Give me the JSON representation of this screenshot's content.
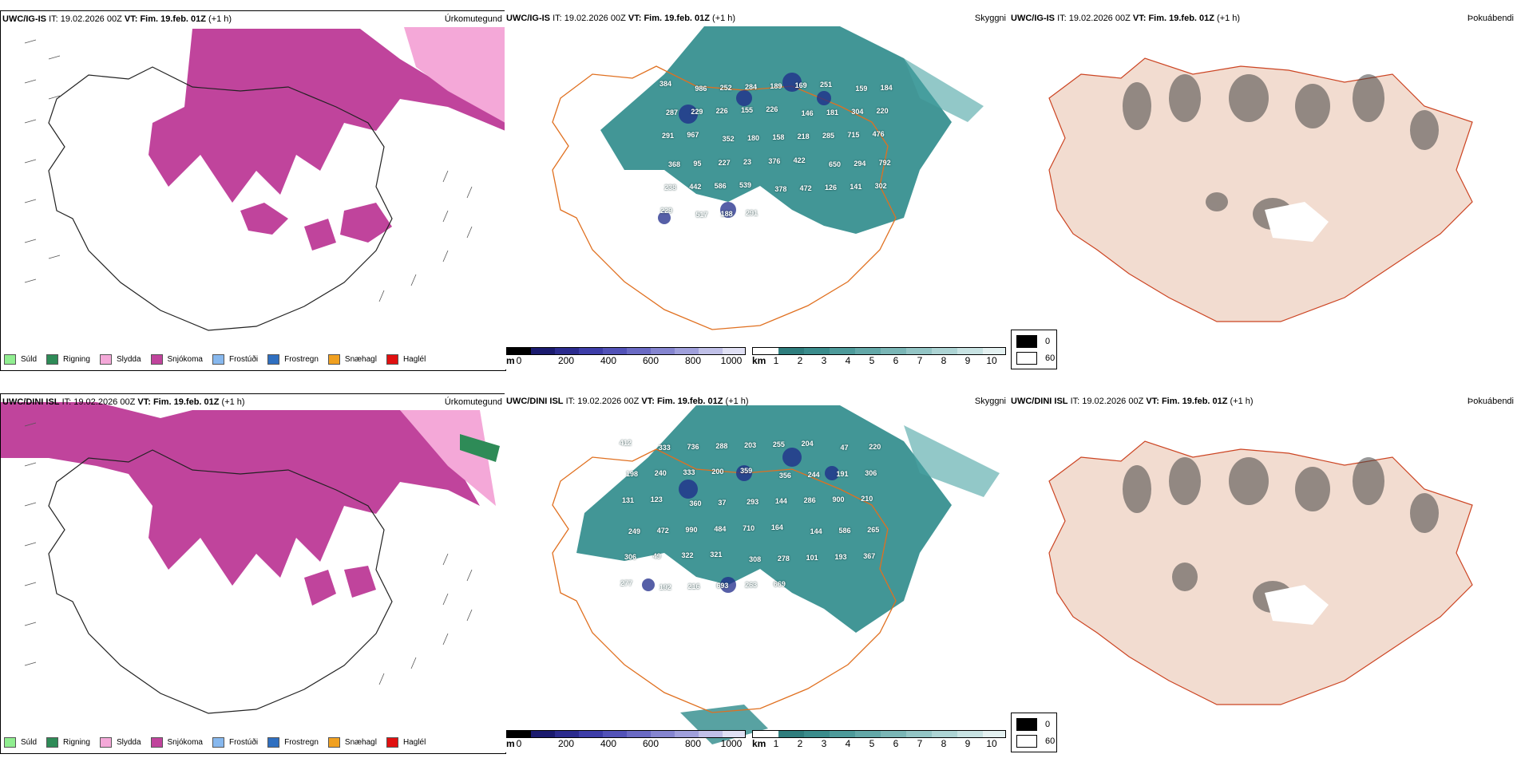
{
  "panels": {
    "top": {
      "precip": {
        "model": "UWC/IG-IS",
        "it_label": "IT:",
        "it_value": "19.02.2026 00Z",
        "vt_label": "VT:",
        "vt_value": "Fim. 19.feb. 01Z",
        "lead": "(+1 h)",
        "title": "Úrkomutegund"
      },
      "visibility": {
        "model": "UWC/IG-IS",
        "it_label": "IT:",
        "it_value": "19.02.2026 00Z",
        "vt_label": "VT:",
        "vt_value": "Fim. 19.feb. 01Z",
        "lead": "(+1 h)",
        "title": "Skyggni"
      },
      "fog": {
        "model": "UWC/IG-IS",
        "it_label": "IT:",
        "it_value": "19.02.2026 00Z",
        "vt_label": "VT:",
        "vt_value": "Fim. 19.feb. 01Z",
        "lead": "(+1 h)",
        "title": "Þokuábendi"
      }
    },
    "bottom": {
      "precip": {
        "model": "UWC/DINI ISL",
        "it_label": "IT:",
        "it_value": "19.02.2026 00Z",
        "vt_label": "VT:",
        "vt_value": "Fim. 19.feb. 01Z",
        "lead": "(+1 h)",
        "title": "Úrkomutegund"
      },
      "visibility": {
        "model": "UWC/DINI ISL",
        "it_label": "IT:",
        "it_value": "19.02.2026 00Z",
        "vt_label": "VT:",
        "vt_value": "Fim. 19.feb. 01Z",
        "lead": "(+1 h)",
        "title": "Skyggni"
      },
      "fog": {
        "model": "UWC/DINI ISL",
        "it_label": "IT:",
        "it_value": "19.02.2026 00Z",
        "vt_label": "VT:",
        "vt_value": "Fim. 19.feb. 01Z",
        "lead": "(+1 h)",
        "title": "Þokuábendi"
      }
    }
  },
  "precip_legend": [
    {
      "label": "Súld",
      "color": "#90ee90"
    },
    {
      "label": "Rigning",
      "color": "#2e8b57"
    },
    {
      "label": "Slydda",
      "color": "#f4a8d8"
    },
    {
      "label": "Snjókoma",
      "color": "#c0449c"
    },
    {
      "label": "Frostúði",
      "color": "#87b8ee"
    },
    {
      "label": "Frostregn",
      "color": "#2f6fc0"
    },
    {
      "label": "Snæhagl",
      "color": "#f0a020"
    },
    {
      "label": "Haglél",
      "color": "#e01010"
    }
  ],
  "height_colorbar": {
    "unit": "m",
    "ticks": [
      "0",
      "200",
      "400",
      "600",
      "800",
      "1000"
    ]
  },
  "visibility_colorbar": {
    "unit": "km",
    "ticks": [
      "1",
      "2",
      "3",
      "4",
      "5",
      "6",
      "7",
      "8",
      "9",
      "10"
    ]
  },
  "fog_legend": {
    "high": "0",
    "low": "60"
  },
  "station_values": {
    "top": [
      "384",
      "986",
      "252",
      "284",
      "189",
      "169",
      "251",
      "159",
      "184",
      "287",
      "229",
      "226",
      "155",
      "226",
      "146",
      "181",
      "304",
      "220",
      "291",
      "967",
      "352",
      "180",
      "158",
      "218",
      "285",
      "715",
      "476",
      "368",
      "95",
      "227",
      "23",
      "376",
      "422",
      "650",
      "294",
      "792",
      "238",
      "442",
      "586",
      "539",
      "378",
      "472",
      "126",
      "141",
      "302",
      "229",
      "517",
      "188",
      "291"
    ],
    "bottom": [
      "412",
      "333",
      "736",
      "288",
      "203",
      "255",
      "204",
      "47",
      "220",
      "198",
      "240",
      "333",
      "200",
      "359",
      "356",
      "244",
      "191",
      "306",
      "131",
      "123",
      "360",
      "37",
      "293",
      "144",
      "286",
      "900",
      "210",
      "249",
      "472",
      "990",
      "484",
      "710",
      "164",
      "144",
      "586",
      "265",
      "306",
      "49",
      "322",
      "321",
      "308",
      "278",
      "101",
      "193",
      "367",
      "277",
      "192",
      "216",
      "693",
      "263",
      "669"
    ]
  }
}
